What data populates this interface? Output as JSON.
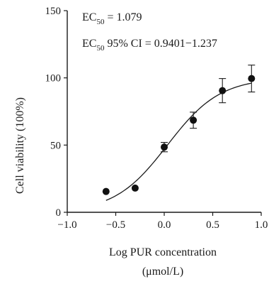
{
  "chart_data": {
    "type": "scatter",
    "xlabel": "Log PUR concentration",
    "xlabel_unit": "(μmol/L)",
    "ylabel": "Cell viability (100%)",
    "xlim": [
      -1.0,
      1.0
    ],
    "ylim": [
      0,
      150
    ],
    "x_ticks": [
      -1.0,
      -0.5,
      0.0,
      0.5,
      1.0
    ],
    "x_tick_labels": [
      "−1.0",
      "−0.5",
      "0.0",
      "0.5",
      "1.0"
    ],
    "y_ticks": [
      0,
      50,
      100,
      150
    ],
    "y_tick_labels": [
      "0",
      "50",
      "100",
      "150"
    ],
    "grid": false,
    "annotations": [
      {
        "id": "ec50",
        "prefix": "EC",
        "sub": "50",
        "suffix": " = 1.079"
      },
      {
        "id": "ci",
        "prefix": "EC",
        "sub": "50",
        "suffix": " 95% CI = 0.9401−1.237"
      }
    ],
    "points": [
      {
        "x": -0.6,
        "y": 15.5,
        "err": 0
      },
      {
        "x": -0.3,
        "y": 18.0,
        "err": 0
      },
      {
        "x": 0.0,
        "y": 48.5,
        "err": 3.5
      },
      {
        "x": 0.3,
        "y": 68.5,
        "err": 6
      },
      {
        "x": 0.6,
        "y": 90.5,
        "err": 9
      },
      {
        "x": 0.9,
        "y": 99.5,
        "err": 10
      }
    ],
    "fit_curve": {
      "model": "logistic",
      "bottom": 0,
      "top": 100,
      "log_ec50": 0.033,
      "hill_slope": 1.6,
      "x_range": [
        -0.6,
        0.9
      ]
    }
  }
}
